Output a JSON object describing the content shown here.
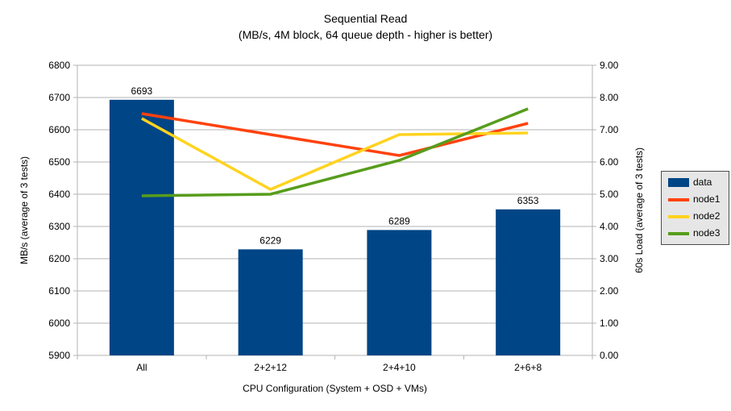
{
  "chart_data": {
    "type": "bar+line",
    "title": "Sequential Read",
    "subtitle": "(MB/s, 4M block, 64 queue depth - higher is better)",
    "categories": [
      "All",
      "2+2+12",
      "2+4+10",
      "2+6+8"
    ],
    "xlabel": "CPU Configuration (System + OSD + VMs)",
    "left_axis": {
      "label": "MB/s (average of 3 tests)",
      "min": 5900,
      "max": 6800,
      "step": 100,
      "ticks": [
        "6800",
        "6700",
        "6600",
        "6500",
        "6400",
        "6300",
        "6200",
        "6100",
        "6000",
        "5900"
      ]
    },
    "right_axis": {
      "label": "60s Load (average of 3 tests)",
      "min": 0,
      "max": 9,
      "step": 1,
      "ticks": [
        "9.00",
        "8.00",
        "7.00",
        "6.00",
        "5.00",
        "4.00",
        "3.00",
        "2.00",
        "1.00",
        "0.00"
      ]
    },
    "bar_series": {
      "name": "data",
      "axis": "left",
      "color": "#004586",
      "values": [
        6693,
        6229,
        6289,
        6353
      ],
      "data_labels": [
        "6693",
        "6229",
        "6289",
        "6353"
      ]
    },
    "line_series": [
      {
        "name": "node1",
        "axis": "right",
        "color": "#ff420e",
        "values": [
          7.5,
          6.85,
          6.2,
          7.2
        ]
      },
      {
        "name": "node2",
        "axis": "right",
        "color": "#ffd320",
        "values": [
          7.35,
          5.15,
          6.85,
          6.9
        ]
      },
      {
        "name": "node3",
        "axis": "right",
        "color": "#579d1c",
        "values": [
          4.95,
          5.0,
          6.05,
          7.65
        ]
      }
    ],
    "legend": {
      "position": "right",
      "items": [
        {
          "label": "data",
          "color": "#004586",
          "swatch": "box"
        },
        {
          "label": "node1",
          "color": "#ff420e",
          "swatch": "line"
        },
        {
          "label": "node2",
          "color": "#ffd320",
          "swatch": "line"
        },
        {
          "label": "node3",
          "color": "#579d1c",
          "swatch": "line"
        }
      ]
    },
    "grid": "horizontal-only",
    "colors": {
      "gridline": "#b3b3b3",
      "axis_line": "#b3b3b3",
      "text": "#000000",
      "legend_fill": "#e6e6e6",
      "legend_border": "#4d4d4d"
    }
  }
}
